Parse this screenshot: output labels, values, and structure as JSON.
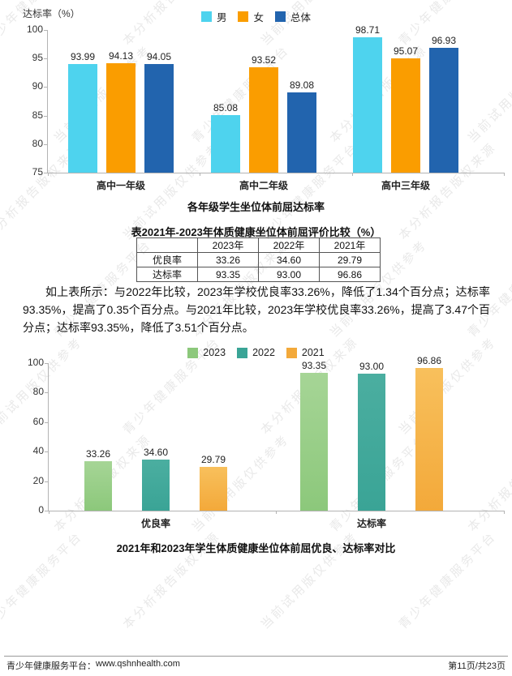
{
  "page": {
    "watermark": {
      "phrases": [
        "青少年健康服务平台",
        "本分析报告版权来源",
        "当前试用版仅供参考"
      ],
      "color": "#e9e9e9"
    },
    "footer": {
      "site_label": "青少年健康服务平台：",
      "site_url": "www.qshnhealth.com",
      "page_info": "第11页/共23页"
    }
  },
  "table": {
    "title": "表2021年-2023年体质健康坐位体前屈评价比较（%）",
    "columns": [
      "",
      "2023年",
      "2022年",
      "2021年"
    ],
    "rows": [
      {
        "label": "优良率",
        "values": [
          "33.26",
          "34.60",
          "29.79"
        ]
      },
      {
        "label": "达标率",
        "values": [
          "93.35",
          "93.00",
          "96.86"
        ]
      }
    ]
  },
  "paragraph": {
    "text": "如上表所示：与2022年比较，2023年学校优良率33.26%，降低了1.34个百分点；达标率93.35%，提高了0.35个百分点。与2021年比较，2023年学校优良率33.26%，提高了3.47个百分点；达标率93.35%，降低了3.51个百分点。"
  },
  "chart_data": [
    {
      "type": "bar",
      "title": "各年级学生坐位体前屈达标率",
      "ylabel": "达标率（%）",
      "ylim": [
        75,
        100
      ],
      "yticks": [
        100,
        95,
        90,
        85,
        80,
        75
      ],
      "grid": false,
      "legend_position": "top-center",
      "categories": [
        "高中一年级",
        "高中二年级",
        "高中三年级"
      ],
      "series": [
        {
          "name": "男",
          "color": "#4ED3EE",
          "values": [
            93.99,
            85.08,
            98.71
          ]
        },
        {
          "name": "女",
          "color": "#FA9D00",
          "values": [
            94.13,
            93.52,
            95.07
          ]
        },
        {
          "name": "总体",
          "color": "#2264AE",
          "values": [
            94.05,
            89.08,
            96.93
          ]
        }
      ]
    },
    {
      "type": "bar",
      "title": "2021年和2023年学生体质健康坐位体前屈优良、达标率对比",
      "ylabel": "",
      "ylim": [
        0,
        100
      ],
      "yticks": [
        100,
        80,
        60,
        40,
        20,
        0
      ],
      "grid": false,
      "legend_position": "top-center",
      "categories": [
        "优良率",
        "达标率"
      ],
      "series": [
        {
          "name": "2023",
          "color": "#8CC87B",
          "color_top": "#A6D596",
          "values": [
            33.26,
            93.35
          ]
        },
        {
          "name": "2022",
          "color": "#3AA496",
          "color_top": "#4BAEA0",
          "values": [
            34.6,
            93.0
          ]
        },
        {
          "name": "2021",
          "color": "#F3A93A",
          "color_top": "#F8C05C",
          "values": [
            29.79,
            96.86
          ]
        }
      ]
    }
  ]
}
